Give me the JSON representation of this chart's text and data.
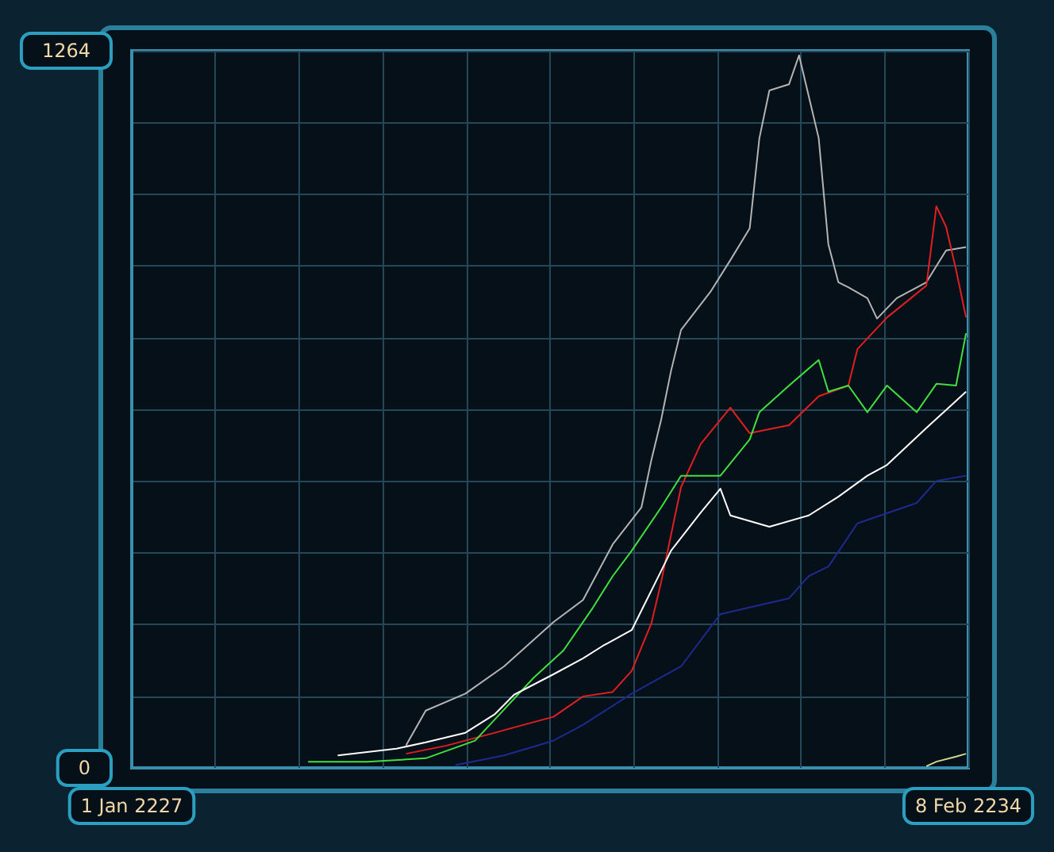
{
  "chart_data": {
    "type": "line",
    "xlim": [
      "2227-01-01",
      "2234-02-08"
    ],
    "ylim": [
      0,
      1264
    ],
    "xticks": [
      {
        "value": "2227-01-01",
        "label": "1 Jan 2227"
      },
      {
        "value": "2227-09-17T12:00",
        "label": null
      },
      {
        "value": "2228-06-03",
        "label": null
      },
      {
        "value": "2229-02-17T12:00",
        "label": null
      },
      {
        "value": "2229-11-04",
        "label": null
      },
      {
        "value": "2230-07-21T12:00",
        "label": null
      },
      {
        "value": "2231-04-07",
        "label": null
      },
      {
        "value": "2231-12-22T12:00",
        "label": null
      },
      {
        "value": "2232-09-07",
        "label": null
      },
      {
        "value": "2233-05-24T12:00",
        "label": null
      },
      {
        "value": "2234-02-08",
        "label": "8 Feb 2234"
      }
    ],
    "yticks": [
      0,
      {
        "value": 126.4,
        "label": null
      },
      {
        "value": 252.8,
        "label": null
      },
      {
        "value": 379.2,
        "label": null
      },
      {
        "value": 505.6,
        "label": null
      },
      {
        "value": 632,
        "label": null
      },
      {
        "value": 758.4,
        "label": null
      },
      {
        "value": 884.8,
        "label": null
      },
      {
        "value": 1011.2,
        "label": null
      },
      {
        "value": 1137.6,
        "label": null
      },
      1264
    ],
    "grid": true,
    "marker": "none",
    "series": [
      {
        "color": "#b4b4b4",
        "x": [
          "2229-05",
          "2229-07",
          "2229-11",
          "2230-03",
          "2230-08",
          "2230-11",
          "2231-02",
          "2231-05",
          "2231-06",
          "2231-07",
          "2231-08",
          "2231-09",
          "2231-12",
          "2232-02",
          "2232-04",
          "2232-05",
          "2232-06",
          "2232-08",
          "2232-09",
          "2232-11",
          "2232-12",
          "2233-01",
          "2233-02",
          "2233-04",
          "2233-05",
          "2233-07",
          "2233-10",
          "2233-12",
          "2234-02"
        ],
        "values": [
          40,
          101,
          131,
          179,
          257,
          296,
          394,
          459,
          543,
          613,
          700,
          772,
          839,
          895,
          951,
          1110,
          1194,
          1205,
          1256,
          1110,
          923,
          856,
          847,
          828,
          792,
          828,
          856,
          912,
          918
        ]
      },
      {
        "color": "#e02020",
        "x": [
          "2229-05",
          "2229-09",
          "2230-02",
          "2230-05",
          "2230-08",
          "2230-11",
          "2231-02",
          "2231-04",
          "2231-06",
          "2231-07",
          "2231-08",
          "2231-09",
          "2231-11",
          "2232-02",
          "2232-04",
          "2232-08",
          "2232-11",
          "2233-02",
          "2233-03",
          "2233-06",
          "2233-08",
          "2233-10",
          "2233-11",
          "2233-12",
          "2234-01",
          "2234-02"
        ],
        "values": [
          25,
          39,
          62,
          76,
          90,
          126,
          134,
          171,
          255,
          327,
          411,
          495,
          571,
          635,
          590,
          604,
          655,
          674,
          738,
          794,
          822,
          850,
          990,
          954,
          878,
          794
        ]
      },
      {
        "color": "#40e040",
        "x": [
          "2228-07",
          "2229-01",
          "2229-07",
          "2229-12",
          "2230-03",
          "2230-06",
          "2230-09",
          "2230-12",
          "2231-02",
          "2231-04",
          "2231-07",
          "2231-09",
          "2232-01",
          "2232-04",
          "2232-05",
          "2232-08",
          "2232-11",
          "2232-12",
          "2233-02",
          "2233-04",
          "2233-06",
          "2233-09",
          "2233-11",
          "2234-01",
          "2234-02"
        ],
        "values": [
          11,
          11,
          17,
          48,
          103,
          159,
          207,
          282,
          338,
          383,
          459,
          515,
          515,
          579,
          627,
          674,
          719,
          663,
          674,
          627,
          674,
          627,
          677,
          674,
          766
        ]
      },
      {
        "color": "#ffffff",
        "x": [
          "2228-10",
          "2229-04",
          "2229-07",
          "2229-11",
          "2230-02",
          "2230-04",
          "2230-08",
          "2230-11",
          "2231-01",
          "2231-04",
          "2231-07",
          "2231-08",
          "2231-11",
          "2232-01",
          "2232-02",
          "2232-06",
          "2232-10",
          "2233-01",
          "2233-04",
          "2233-06",
          "2233-10",
          "2234-02"
        ],
        "values": [
          22,
          34,
          45,
          62,
          95,
          129,
          165,
          193,
          215,
          243,
          347,
          383,
          450,
          492,
          445,
          425,
          445,
          478,
          515,
          534,
          599,
          663
        ]
      },
      {
        "color": "#1e2a90",
        "x": [
          "2229-10",
          "2230-03",
          "2230-08",
          "2230-11",
          "2231-04",
          "2231-09",
          "2232-01",
          "2232-08",
          "2232-10",
          "2232-12",
          "2233-03",
          "2233-09",
          "2233-11",
          "2234-02"
        ],
        "values": [
          5,
          22,
          48,
          76,
          131,
          179,
          271,
          299,
          338,
          355,
          431,
          467,
          506,
          515
        ]
      },
      {
        "color": "#d0d890",
        "x": [
          "2233-10",
          "2233-11",
          "2234-01",
          "2234-02"
        ],
        "values": [
          3,
          11,
          20,
          25
        ]
      }
    ]
  }
}
